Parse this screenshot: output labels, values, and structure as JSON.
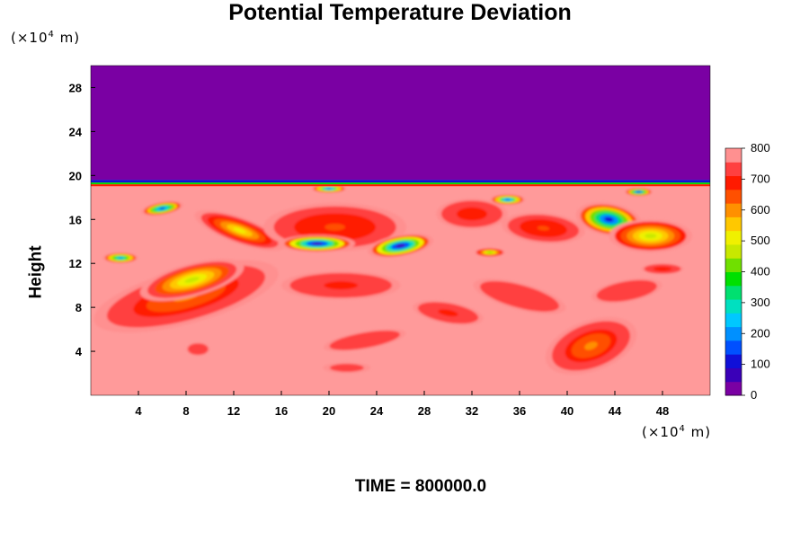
{
  "chart_data": {
    "type": "heatmap",
    "title": "Potential Temperature Deviation",
    "ylabel": "Height",
    "x_unit_label": "(×10",
    "y_unit_label": "(×10",
    "unit_exp": "4",
    "unit_tail": " m)",
    "footer": "TIME = 800000.0",
    "xlim": [
      0,
      52
    ],
    "ylim": [
      0,
      30
    ],
    "x_ticks": [
      "4",
      "8",
      "12",
      "16",
      "20",
      "24",
      "28",
      "32",
      "36",
      "40",
      "44",
      "48"
    ],
    "x_tick_values": [
      4,
      8,
      12,
      16,
      20,
      24,
      28,
      32,
      36,
      40,
      44,
      48
    ],
    "y_ticks": [
      "4",
      "8",
      "12",
      "16",
      "20",
      "24",
      "28"
    ],
    "y_tick_values": [
      4,
      8,
      12,
      16,
      20,
      24,
      28
    ],
    "colorbar": {
      "range": [
        0,
        800
      ],
      "ticks": [
        "0",
        "100",
        "200",
        "300",
        "400",
        "500",
        "600",
        "700",
        "800"
      ],
      "tick_values": [
        0,
        100,
        200,
        300,
        400,
        500,
        600,
        700,
        800
      ],
      "colors": [
        "#7a00a3",
        "#3a00b8",
        "#1010d8",
        "#0050ff",
        "#0090ff",
        "#00c8ff",
        "#00e0c0",
        "#00e070",
        "#00e000",
        "#70e000",
        "#c8e800",
        "#f0f000",
        "#ffc800",
        "#ff9000",
        "#ff5000",
        "#ff1a00",
        "#ff4040",
        "#ff9090"
      ]
    },
    "upper_layer_top": 30,
    "upper_layer_bottom": 19.6,
    "upper_color": "#7a00a3",
    "background_color": "#ff9a9a",
    "blobs": [
      {
        "x": 8,
        "y": 9,
        "rx": 8,
        "ry": 2.5,
        "value": 620,
        "rot": -15
      },
      {
        "x": 8.5,
        "y": 10.5,
        "rx": 4.5,
        "ry": 1.5,
        "value": 480,
        "rot": -15
      },
      {
        "x": 21,
        "y": 10,
        "rx": 5,
        "ry": 1.3,
        "value": 700,
        "rot": 0
      },
      {
        "x": 36,
        "y": 9,
        "rx": 4,
        "ry": 1.2,
        "value": 720,
        "rot": 15
      },
      {
        "x": 30,
        "y": 7.5,
        "rx": 3,
        "ry": 1,
        "value": 700,
        "rot": 10
      },
      {
        "x": 42,
        "y": 4.5,
        "rx": 4,
        "ry": 2.3,
        "value": 620,
        "rot": -20
      },
      {
        "x": 45,
        "y": 9.5,
        "rx": 3,
        "ry": 1,
        "value": 720,
        "rot": -10
      },
      {
        "x": 23,
        "y": 5,
        "rx": 3.5,
        "ry": 0.8,
        "value": 730,
        "rot": -10
      },
      {
        "x": 9,
        "y": 4.2,
        "rx": 1,
        "ry": 0.6,
        "value": 730,
        "rot": 0
      },
      {
        "x": 21.5,
        "y": 2.5,
        "rx": 2,
        "ry": 0.5,
        "value": 740,
        "rot": 0
      },
      {
        "x": 43.5,
        "y": 16,
        "rx": 2.8,
        "ry": 1.5,
        "value": 100,
        "rot": 10
      },
      {
        "x": 12.5,
        "y": 15,
        "rx": 4,
        "ry": 1.2,
        "value": 500,
        "rot": 20
      },
      {
        "x": 20.5,
        "y": 15.3,
        "rx": 6,
        "ry": 2.2,
        "value": 650,
        "rot": 0
      },
      {
        "x": 38,
        "y": 15.2,
        "rx": 3.5,
        "ry": 1.4,
        "value": 650,
        "rot": 5
      },
      {
        "x": 32,
        "y": 16.5,
        "rx": 3,
        "ry": 1.4,
        "value": 680,
        "rot": 0
      },
      {
        "x": 47,
        "y": 14.5,
        "rx": 3.5,
        "ry": 1.5,
        "value": 450,
        "rot": 0
      },
      {
        "x": 19,
        "y": 13.8,
        "rx": 3.2,
        "ry": 0.8,
        "value": 60,
        "rot": 0
      },
      {
        "x": 26,
        "y": 13.6,
        "rx": 2.8,
        "ry": 1,
        "value": 60,
        "rot": -10
      },
      {
        "x": 6,
        "y": 17,
        "rx": 1.8,
        "ry": 0.6,
        "value": 120,
        "rot": -10
      },
      {
        "x": 35,
        "y": 17.8,
        "rx": 1.5,
        "ry": 0.5,
        "value": 150,
        "rot": 0
      },
      {
        "x": 46,
        "y": 18.5,
        "rx": 1.2,
        "ry": 0.4,
        "value": 100,
        "rot": 0
      },
      {
        "x": 20,
        "y": 18.8,
        "rx": 1.5,
        "ry": 0.4,
        "value": 150,
        "rot": 0
      },
      {
        "x": 2.5,
        "y": 12.5,
        "rx": 1.5,
        "ry": 0.5,
        "value": 200,
        "rot": 0
      },
      {
        "x": 33.5,
        "y": 13,
        "rx": 1.3,
        "ry": 0.4,
        "value": 400,
        "rot": 0
      },
      {
        "x": 48,
        "y": 11.5,
        "rx": 1.8,
        "ry": 0.5,
        "value": 680,
        "rot": 0
      }
    ]
  }
}
